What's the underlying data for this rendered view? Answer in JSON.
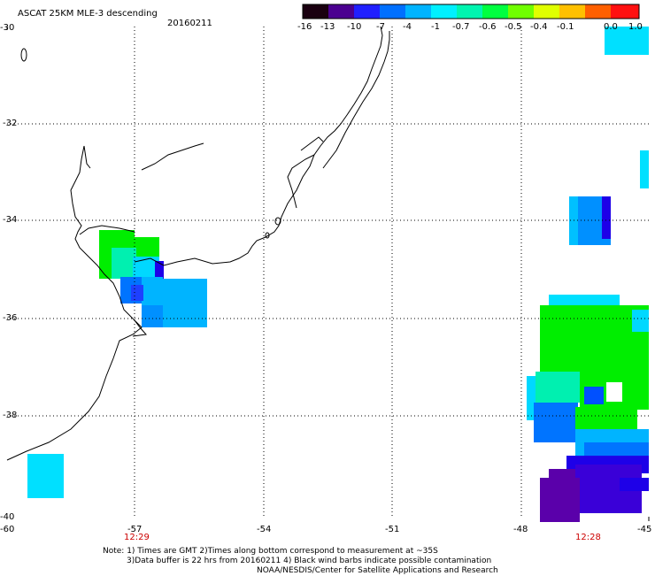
{
  "header": {
    "title": "ASCAT 25KM MLE-3 descending",
    "date": "20160211"
  },
  "colorbar": {
    "labels": [
      "-16",
      "-13",
      "-10",
      "-7",
      "-4",
      "-1",
      "-0.7",
      "-0.6",
      "-0.5",
      "-0.4",
      "-0.1",
      "0.0",
      "1.0"
    ]
  },
  "axes": {
    "lat_labels": [
      "-30",
      "-32",
      "-34",
      "-36",
      "-38",
      "-40"
    ],
    "lon_labels": [
      "-60",
      "-57",
      "-54",
      "-51",
      "-48",
      "-45"
    ]
  },
  "times": {
    "left": "12:29",
    "right": "12:28"
  },
  "notes": {
    "line1": "Note: 1) Times are GMT 2)Times along bottom correspond to measurement at ~35S",
    "line2": "3)Data buffer is 22 hrs from 20160211 4) Black wind barbs indicate possible contamination",
    "line3": "NOAA/NESDIS/Center for Satellite Applications and Research"
  },
  "colors": {
    "green": "#00ee00",
    "cyan": "#00e0ff",
    "light_blue": "#00b4ff",
    "blue": "#0074ff",
    "dark_blue": "#1e00e8",
    "purple": "#5a00aa",
    "teal_green": "#00f0b0",
    "white": "#ffffff"
  }
}
